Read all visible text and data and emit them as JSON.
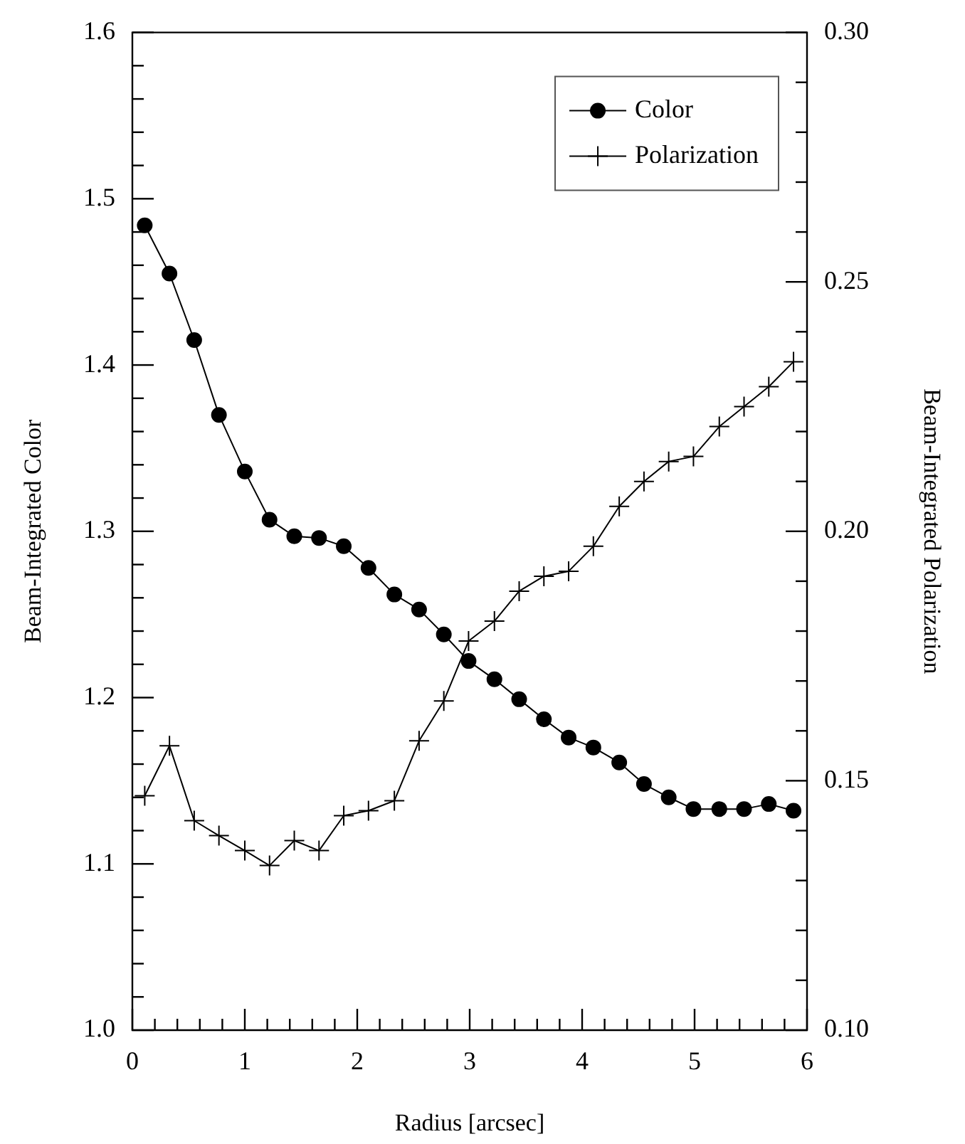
{
  "chart_data": {
    "type": "line",
    "xlabel": "Radius [arcsec]",
    "ylabel": "Beam-Integrated Color",
    "y2label": "Beam-Integrated Polarization",
    "x": [
      0.11,
      0.33,
      0.55,
      0.77,
      1.0,
      1.22,
      1.44,
      1.66,
      1.88,
      2.1,
      2.33,
      2.55,
      2.77,
      2.99,
      3.22,
      3.44,
      3.66,
      3.88,
      4.1,
      4.33,
      4.55,
      4.77,
      4.99,
      5.22,
      5.44,
      5.66,
      5.88
    ],
    "series": [
      {
        "name": "Color",
        "color": "#000000",
        "marker": "circle",
        "values": [
          1.484,
          1.455,
          1.415,
          1.37,
          1.336,
          1.307,
          1.297,
          1.296,
          1.291,
          1.278,
          1.262,
          1.253,
          1.238,
          1.222,
          1.211,
          1.199,
          1.187,
          1.176,
          1.17,
          1.161,
          1.148,
          1.14,
          1.133,
          1.133,
          1.133,
          1.136,
          1.132
        ]
      },
      {
        "name": "Polarization",
        "color": "#000000",
        "marker": "cross",
        "axis": "y2",
        "values": [
          0.147,
          0.157,
          0.142,
          0.139,
          0.136,
          0.133,
          0.138,
          0.136,
          0.143,
          0.144,
          0.146,
          0.158,
          0.166,
          0.178,
          0.182,
          0.188,
          0.191,
          0.192,
          0.197,
          0.205,
          0.21,
          0.214,
          0.215,
          0.221,
          0.225,
          0.229,
          0.234
        ]
      }
    ],
    "xlim": [
      0,
      6
    ],
    "xticks": [
      0,
      {
        "value": 0.2,
        "label": null
      },
      {
        "value": 0.4,
        "label": null
      },
      {
        "value": 0.6,
        "label": null
      },
      {
        "value": 0.8,
        "label": null
      },
      1,
      {
        "value": 1.2,
        "label": null
      },
      {
        "value": 1.4,
        "label": null
      },
      {
        "value": 1.6,
        "label": null
      },
      {
        "value": 1.8,
        "label": null
      },
      2,
      {
        "value": 2.2,
        "label": null
      },
      {
        "value": 2.4,
        "label": null
      },
      {
        "value": 2.6,
        "label": null
      },
      {
        "value": 2.8,
        "label": null
      },
      3,
      {
        "value": 3.2,
        "label": null
      },
      {
        "value": 3.4,
        "label": null
      },
      {
        "value": 3.6,
        "label": null
      },
      {
        "value": 3.8,
        "label": null
      },
      4,
      {
        "value": 4.2,
        "label": null
      },
      {
        "value": 4.4,
        "label": null
      },
      {
        "value": 4.6,
        "label": null
      },
      {
        "value": 4.8,
        "label": null
      },
      5,
      {
        "value": 5.2,
        "label": null
      },
      {
        "value": 5.4,
        "label": null
      },
      {
        "value": 5.6,
        "label": null
      },
      {
        "value": 5.8,
        "label": null
      },
      6
    ],
    "ylim": [
      1.0,
      1.6
    ],
    "yticks": [
      {
        "value": 1.0,
        "label": "1.0"
      },
      {
        "value": 1.02,
        "label": null
      },
      {
        "value": 1.04,
        "label": null
      },
      {
        "value": 1.06,
        "label": null
      },
      {
        "value": 1.08,
        "label": null
      },
      {
        "value": 1.1,
        "label": "1.1"
      },
      {
        "value": 1.12,
        "label": null
      },
      {
        "value": 1.14,
        "label": null
      },
      {
        "value": 1.16,
        "label": null
      },
      {
        "value": 1.18,
        "label": null
      },
      {
        "value": 1.2,
        "label": "1.2"
      },
      {
        "value": 1.22,
        "label": null
      },
      {
        "value": 1.24,
        "label": null
      },
      {
        "value": 1.26,
        "label": null
      },
      {
        "value": 1.28,
        "label": null
      },
      {
        "value": 1.3,
        "label": "1.3"
      },
      {
        "value": 1.32,
        "label": null
      },
      {
        "value": 1.34,
        "label": null
      },
      {
        "value": 1.36,
        "label": null
      },
      {
        "value": 1.38,
        "label": null
      },
      {
        "value": 1.4,
        "label": "1.4"
      },
      {
        "value": 1.42,
        "label": null
      },
      {
        "value": 1.44,
        "label": null
      },
      {
        "value": 1.46,
        "label": null
      },
      {
        "value": 1.48,
        "label": null
      },
      {
        "value": 1.5,
        "label": "1.5"
      },
      {
        "value": 1.52,
        "label": null
      },
      {
        "value": 1.54,
        "label": null
      },
      {
        "value": 1.56,
        "label": null
      },
      {
        "value": 1.58,
        "label": null
      },
      {
        "value": 1.6,
        "label": "1.6"
      }
    ],
    "y2lim": [
      0.1,
      0.3
    ],
    "y2ticks": [
      {
        "value": 0.1,
        "label": "0.10"
      },
      {
        "value": 0.11,
        "label": null
      },
      {
        "value": 0.12,
        "label": null
      },
      {
        "value": 0.13,
        "label": null
      },
      {
        "value": 0.14,
        "label": null
      },
      {
        "value": 0.15,
        "label": "0.15"
      },
      {
        "value": 0.16,
        "label": null
      },
      {
        "value": 0.17,
        "label": null
      },
      {
        "value": 0.18,
        "label": null
      },
      {
        "value": 0.19,
        "label": null
      },
      {
        "value": 0.2,
        "label": "0.20"
      },
      {
        "value": 0.21,
        "label": null
      },
      {
        "value": 0.22,
        "label": null
      },
      {
        "value": 0.23,
        "label": null
      },
      {
        "value": 0.24,
        "label": null
      },
      {
        "value": 0.25,
        "label": "0.25"
      },
      {
        "value": 0.26,
        "label": null
      },
      {
        "value": 0.27,
        "label": null
      },
      {
        "value": 0.28,
        "label": null
      },
      {
        "value": 0.29,
        "label": null
      },
      {
        "value": 0.3,
        "label": "0.30"
      }
    ],
    "grid": false,
    "legend": "top right",
    "line_style": "solid"
  }
}
